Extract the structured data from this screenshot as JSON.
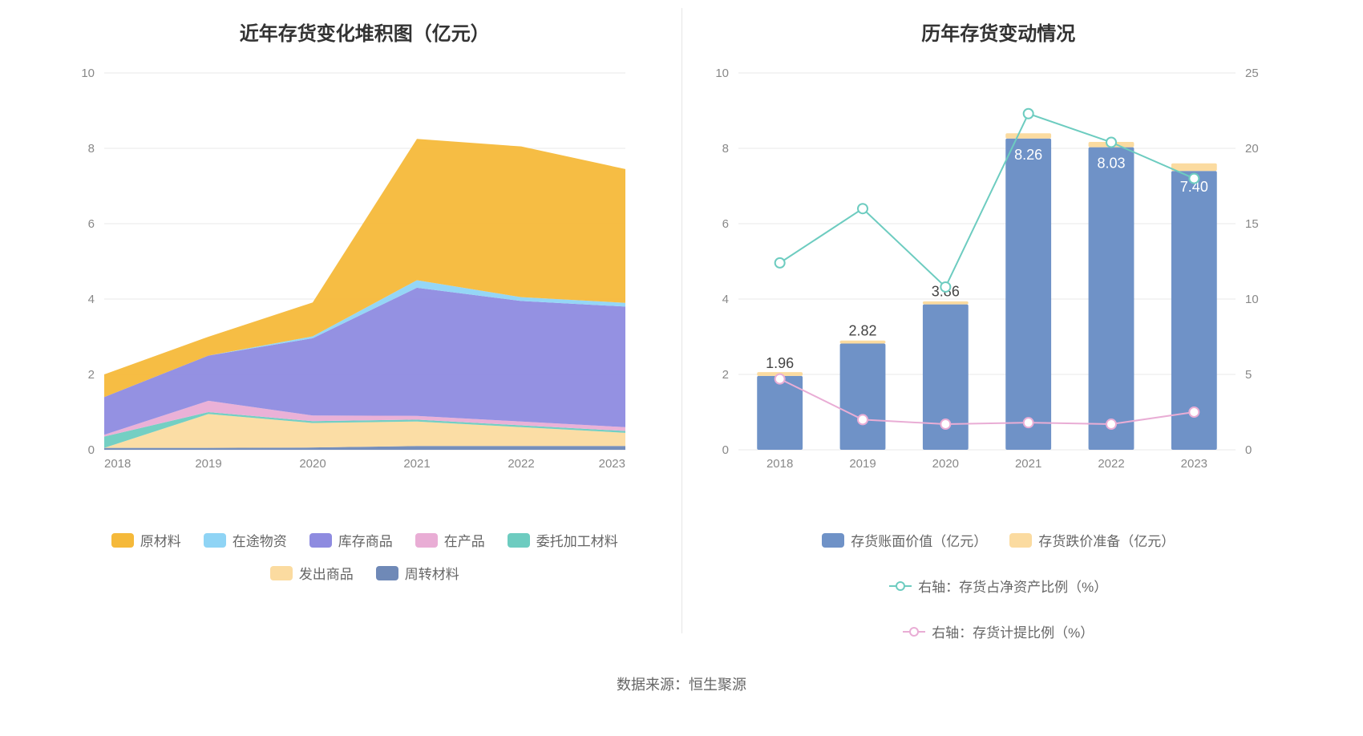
{
  "left_chart": {
    "type": "stacked-area",
    "title": "近年存货变化堆积图（亿元）",
    "title_fontsize": 24,
    "background_color": "#ffffff",
    "grid_color": "#e9e9e9",
    "axis_label_color": "#888888",
    "axis_fontsize": 15,
    "x_categories": [
      "2018",
      "2019",
      "2020",
      "2021",
      "2022",
      "2023"
    ],
    "y_ticks": [
      0,
      2,
      4,
      6,
      8,
      10
    ],
    "ylim": [
      0,
      10
    ],
    "series": [
      {
        "name": "周转材料",
        "color": "#6f89b7",
        "values": [
          0.05,
          0.05,
          0.06,
          0.1,
          0.1,
          0.1
        ]
      },
      {
        "name": "发出商品",
        "color": "#fbdba0",
        "values": [
          0.0,
          0.9,
          0.65,
          0.65,
          0.5,
          0.35
        ]
      },
      {
        "name": "委托加工材料",
        "color": "#6dccc0",
        "values": [
          0.3,
          0.05,
          0.05,
          0.05,
          0.05,
          0.05
        ]
      },
      {
        "name": "在产品",
        "color": "#e9add5",
        "values": [
          0.05,
          0.3,
          0.15,
          0.1,
          0.1,
          0.1
        ]
      },
      {
        "name": "库存商品",
        "color": "#8e8be0",
        "values": [
          1.0,
          1.2,
          2.05,
          3.4,
          3.2,
          3.2
        ]
      },
      {
        "name": "在途物资",
        "color": "#8fd4f5",
        "values": [
          0.0,
          0.0,
          0.05,
          0.2,
          0.1,
          0.1
        ]
      },
      {
        "name": "原材料",
        "color": "#f5b93a",
        "values": [
          0.6,
          0.5,
          0.9,
          3.75,
          4.0,
          3.55
        ]
      }
    ],
    "legend_order": [
      "原材料",
      "在途物资",
      "库存商品",
      "在产品",
      "委托加工材料",
      "发出商品",
      "周转材料"
    ]
  },
  "right_chart": {
    "type": "bar+line-dual-axis",
    "title": "历年存货变动情况",
    "title_fontsize": 24,
    "background_color": "#ffffff",
    "grid_color": "#e9e9e9",
    "axis_label_color": "#888888",
    "axis_fontsize": 15,
    "x_categories": [
      "2018",
      "2019",
      "2020",
      "2021",
      "2022",
      "2023"
    ],
    "y_left_ticks": [
      0,
      2,
      4,
      6,
      8,
      10
    ],
    "y_left_lim": [
      0,
      10
    ],
    "y_right_ticks": [
      0,
      5,
      10,
      15,
      20,
      25
    ],
    "y_right_lim": [
      0,
      25
    ],
    "bar_width": 0.55,
    "bars": [
      {
        "name": "存货账面价值（亿元）",
        "color": "#6f92c7",
        "values": [
          1.96,
          2.82,
          3.86,
          8.26,
          8.03,
          7.4
        ],
        "labels": [
          "1.96",
          "2.82",
          "3.86",
          "8.26",
          "8.03",
          "7.40"
        ]
      },
      {
        "name": "存货跌价准备（亿元）",
        "color": "#fbdba0",
        "values": [
          0.1,
          0.08,
          0.08,
          0.14,
          0.14,
          0.2
        ]
      }
    ],
    "lines": [
      {
        "name": "右轴：存货占净资产比例（%）",
        "color": "#6dccc0",
        "marker": "circle",
        "values": [
          12.4,
          16.0,
          10.8,
          22.3,
          20.4,
          18.0
        ]
      },
      {
        "name": "右轴：存货计提比例（%）",
        "color": "#e9add5",
        "marker": "circle",
        "values": [
          4.7,
          2.0,
          1.7,
          1.8,
          1.7,
          2.5
        ]
      }
    ],
    "legend_order": [
      "存货账面价值（亿元）",
      "存货跌价准备（亿元）",
      "右轴：存货占净资产比例（%）",
      "右轴：存货计提比例（%）"
    ]
  },
  "source_label": "数据来源：恒生聚源"
}
